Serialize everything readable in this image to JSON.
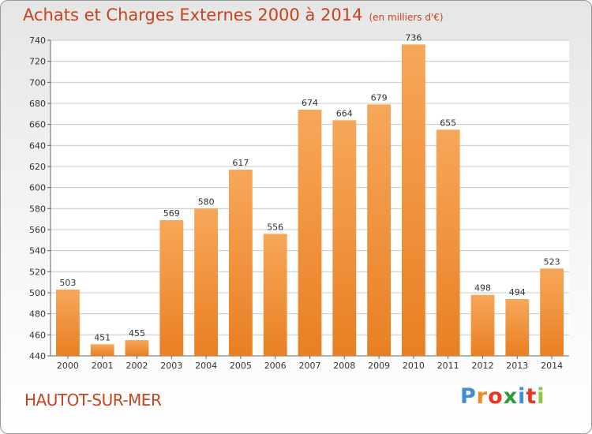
{
  "title": "Achats et Charges Externes 2000 à 2014",
  "subtitle": "(en milliers d'€)",
  "place": "HAUTOT-SUR-MER",
  "logo": {
    "letters": [
      "P",
      "r",
      "o",
      "x",
      "i",
      "t",
      "i"
    ],
    "colors": [
      "#3d8fd1",
      "#f08a1a",
      "#e8371e",
      "#2e9a3c",
      "#3d8fd1",
      "#e8371e",
      "#8cc63f"
    ]
  },
  "colors": {
    "bar_light": "#f7a75a",
    "bar_dark": "#e97f22",
    "title": "#c4441f",
    "grid": "#c8c8c8"
  },
  "chart_data": {
    "type": "bar",
    "title": "Achats et Charges Externes 2000 à 2014",
    "subtitle": "(en milliers d'€)",
    "categories": [
      "2000",
      "2001",
      "2002",
      "2003",
      "2004",
      "2005",
      "2006",
      "2007",
      "2008",
      "2009",
      "2010",
      "2011",
      "2012",
      "2013",
      "2014"
    ],
    "values": [
      503,
      451,
      455,
      569,
      580,
      617,
      556,
      674,
      664,
      679,
      736,
      655,
      498,
      494,
      523
    ],
    "ylim": [
      440,
      740
    ],
    "yticks": [
      440,
      460,
      480,
      500,
      520,
      540,
      560,
      580,
      600,
      620,
      640,
      660,
      680,
      700,
      720,
      740
    ],
    "grid": true,
    "xlabel": "",
    "ylabel": ""
  }
}
